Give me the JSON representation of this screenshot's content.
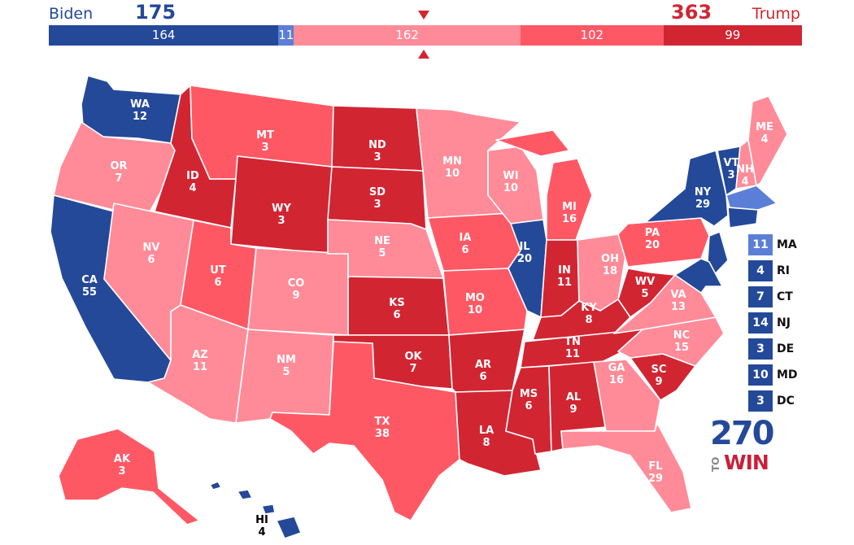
{
  "header": {
    "biden_name": "Biden",
    "trump_name": "Trump",
    "biden_total": "175",
    "trump_total": "363"
  },
  "colors": {
    "safe_dem": "#244999",
    "likely_dem": "#5b7fd6",
    "lean_rep": "#ff8b98",
    "likely_rep": "#ff5865",
    "safe_rep": "#d22532"
  },
  "bar": [
    {
      "rating": "safe_dem",
      "value": 164,
      "label": "164"
    },
    {
      "rating": "likely_dem",
      "value": 11,
      "label": "11"
    },
    {
      "rating": "lean_rep",
      "value": 162,
      "label": "162"
    },
    {
      "rating": "likely_rep",
      "value": 102,
      "label": "102"
    },
    {
      "rating": "safe_rep",
      "value": 99,
      "label": "99"
    }
  ],
  "states": [
    {
      "abbr": "WA",
      "ev": "12",
      "rating": "safe_dem"
    },
    {
      "abbr": "OR",
      "ev": "7",
      "rating": "lean_rep"
    },
    {
      "abbr": "CA",
      "ev": "55",
      "rating": "safe_dem"
    },
    {
      "abbr": "NV",
      "ev": "6",
      "rating": "lean_rep"
    },
    {
      "abbr": "ID",
      "ev": "4",
      "rating": "safe_rep"
    },
    {
      "abbr": "MT",
      "ev": "3",
      "rating": "likely_rep"
    },
    {
      "abbr": "WY",
      "ev": "3",
      "rating": "safe_rep"
    },
    {
      "abbr": "UT",
      "ev": "6",
      "rating": "likely_rep"
    },
    {
      "abbr": "AZ",
      "ev": "11",
      "rating": "lean_rep"
    },
    {
      "abbr": "CO",
      "ev": "9",
      "rating": "lean_rep"
    },
    {
      "abbr": "NM",
      "ev": "5",
      "rating": "lean_rep"
    },
    {
      "abbr": "ND",
      "ev": "3",
      "rating": "safe_rep"
    },
    {
      "abbr": "SD",
      "ev": "3",
      "rating": "safe_rep"
    },
    {
      "abbr": "NE",
      "ev": "5",
      "rating": "lean_rep"
    },
    {
      "abbr": "KS",
      "ev": "6",
      "rating": "safe_rep"
    },
    {
      "abbr": "OK",
      "ev": "7",
      "rating": "safe_rep"
    },
    {
      "abbr": "TX",
      "ev": "38",
      "rating": "likely_rep"
    },
    {
      "abbr": "MN",
      "ev": "10",
      "rating": "lean_rep"
    },
    {
      "abbr": "IA",
      "ev": "6",
      "rating": "likely_rep"
    },
    {
      "abbr": "MO",
      "ev": "10",
      "rating": "likely_rep"
    },
    {
      "abbr": "AR",
      "ev": "6",
      "rating": "safe_rep"
    },
    {
      "abbr": "LA",
      "ev": "8",
      "rating": "safe_rep"
    },
    {
      "abbr": "WI",
      "ev": "10",
      "rating": "lean_rep"
    },
    {
      "abbr": "IL",
      "ev": "20",
      "rating": "safe_dem"
    },
    {
      "abbr": "MI",
      "ev": "16",
      "rating": "likely_rep"
    },
    {
      "abbr": "IN",
      "ev": "11",
      "rating": "safe_rep"
    },
    {
      "abbr": "OH",
      "ev": "18",
      "rating": "lean_rep"
    },
    {
      "abbr": "KY",
      "ev": "8",
      "rating": "safe_rep"
    },
    {
      "abbr": "TN",
      "ev": "11",
      "rating": "safe_rep"
    },
    {
      "abbr": "MS",
      "ev": "6",
      "rating": "safe_rep"
    },
    {
      "abbr": "AL",
      "ev": "9",
      "rating": "safe_rep"
    },
    {
      "abbr": "GA",
      "ev": "16",
      "rating": "lean_rep"
    },
    {
      "abbr": "FL",
      "ev": "29",
      "rating": "lean_rep"
    },
    {
      "abbr": "SC",
      "ev": "9",
      "rating": "safe_rep"
    },
    {
      "abbr": "NC",
      "ev": "15",
      "rating": "lean_rep"
    },
    {
      "abbr": "VA",
      "ev": "13",
      "rating": "lean_rep"
    },
    {
      "abbr": "WV",
      "ev": "5",
      "rating": "safe_rep"
    },
    {
      "abbr": "PA",
      "ev": "20",
      "rating": "likely_rep"
    },
    {
      "abbr": "NY",
      "ev": "29",
      "rating": "safe_dem"
    },
    {
      "abbr": "VT",
      "ev": "3",
      "rating": "safe_dem"
    },
    {
      "abbr": "NH",
      "ev": "4",
      "rating": "lean_rep"
    },
    {
      "abbr": "ME",
      "ev": "4",
      "rating": "lean_rep"
    },
    {
      "abbr": "AK",
      "ev": "3",
      "rating": "likely_rep"
    },
    {
      "abbr": "HI",
      "ev": "4",
      "rating": "safe_dem"
    }
  ],
  "small_states": [
    {
      "abbr": "MA",
      "ev": "11",
      "rating": "likely_dem"
    },
    {
      "abbr": "RI",
      "ev": "4",
      "rating": "safe_dem"
    },
    {
      "abbr": "CT",
      "ev": "7",
      "rating": "safe_dem"
    },
    {
      "abbr": "NJ",
      "ev": "14",
      "rating": "safe_dem"
    },
    {
      "abbr": "DE",
      "ev": "3",
      "rating": "safe_dem"
    },
    {
      "abbr": "MD",
      "ev": "10",
      "rating": "safe_dem"
    },
    {
      "abbr": "DC",
      "ev": "3",
      "rating": "safe_dem"
    }
  ],
  "logo": {
    "number": "270",
    "to": "TO",
    "win": "WIN"
  }
}
